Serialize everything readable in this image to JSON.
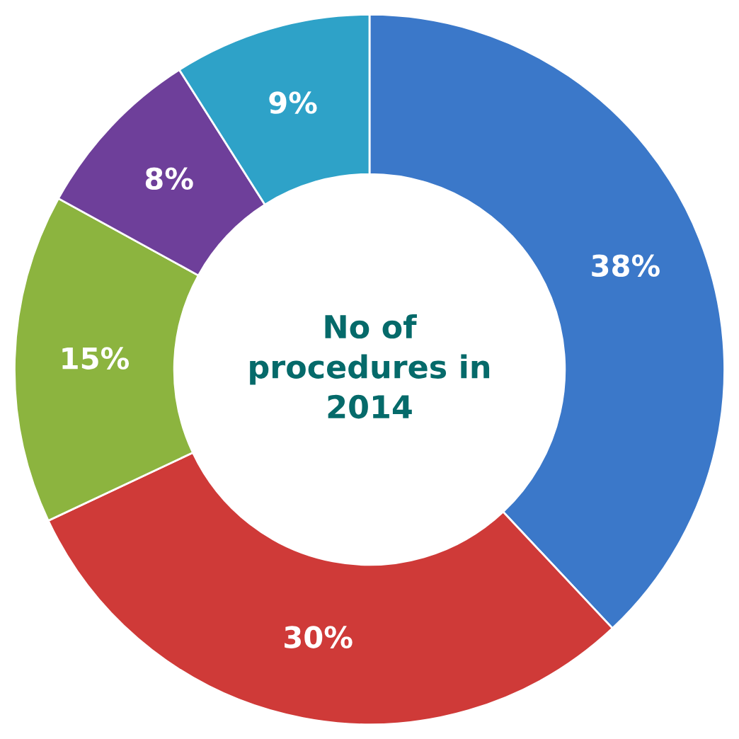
{
  "chart_data": {
    "type": "donut",
    "title": "No of procedures in 2014",
    "categories": [
      null,
      null,
      null,
      null,
      null
    ],
    "values": [
      38,
      30,
      15,
      8,
      9
    ],
    "value_labels": [
      "38%",
      "30%",
      "15%",
      "8%",
      "9%"
    ],
    "colors": [
      "#3b78c9",
      "#cf3a38",
      "#8cb43f",
      "#6e3f9a",
      "#2ea2c8"
    ],
    "legend": false
  }
}
